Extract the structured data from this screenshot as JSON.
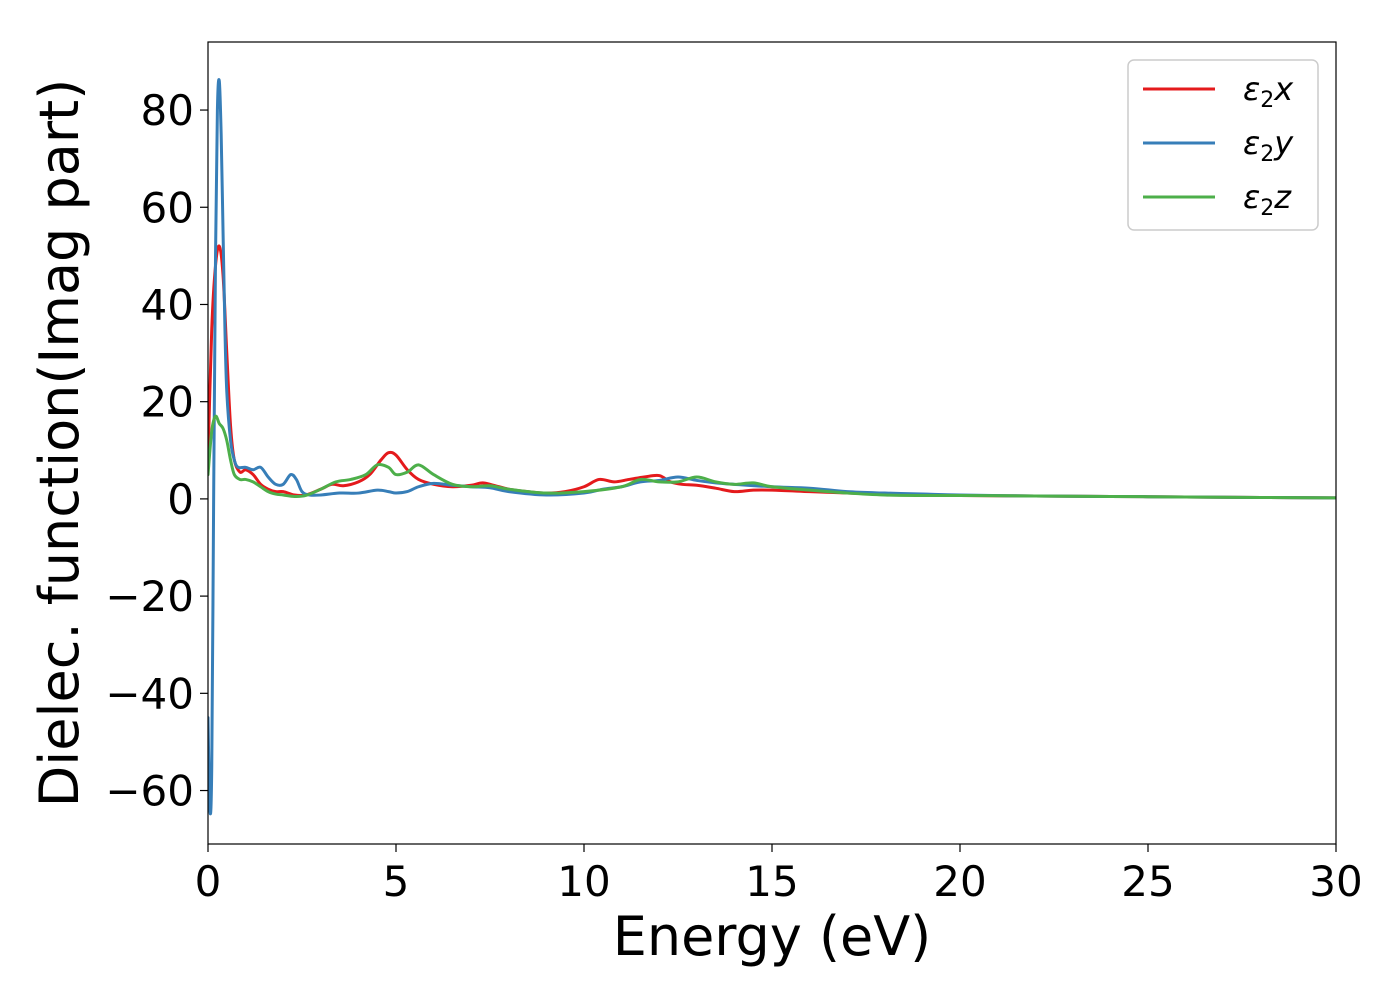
{
  "chart_data": {
    "type": "line",
    "title": "",
    "xlabel": "Energy (eV)",
    "ylabel": "Dielec. function(Imag part)",
    "xlim": [
      0,
      30
    ],
    "ylim": [
      -71,
      94
    ],
    "xticks": [
      0,
      5,
      10,
      15,
      20,
      25,
      30
    ],
    "xtick_labels": [
      "0",
      "5",
      "10",
      "15",
      "20",
      "25",
      "30"
    ],
    "yticks": [
      -60,
      -40,
      -20,
      0,
      20,
      40,
      60,
      80
    ],
    "ytick_labels": [
      "−60",
      "−40",
      "−20",
      "0",
      "20",
      "40",
      "60",
      "80"
    ],
    "grid": false,
    "legend_position": "top-right",
    "series": [
      {
        "name": "ε₂x",
        "legend_base": "ε",
        "legend_sub": "2",
        "legend_tail": "x",
        "color": "#e41a1c",
        "x": [
          0,
          0.1,
          0.2,
          0.3,
          0.4,
          0.5,
          0.6,
          0.7,
          0.85,
          1.0,
          1.2,
          1.4,
          1.6,
          1.8,
          2.0,
          2.3,
          2.6,
          3.0,
          3.3,
          3.6,
          4.0,
          4.3,
          4.6,
          4.8,
          5.0,
          5.3,
          5.6,
          6.0,
          6.5,
          7.0,
          7.3,
          7.6,
          8.0,
          8.5,
          9.0,
          9.5,
          10.0,
          10.4,
          10.8,
          11.2,
          11.6,
          12.0,
          12.3,
          12.6,
          13.0,
          13.5,
          14.0,
          14.5,
          15.0,
          16.0,
          17.0,
          18.0,
          19.0,
          20.0,
          22.0,
          24.0,
          26.0,
          28.0,
          30.0
        ],
        "y": [
          8,
          35,
          48,
          52,
          46,
          30,
          15,
          8,
          5.5,
          6,
          5,
          3,
          2,
          1.5,
          1.5,
          0.8,
          0.8,
          2,
          3,
          2.7,
          3.5,
          5,
          8,
          9.5,
          9,
          6,
          4,
          3,
          2.5,
          2.8,
          3.3,
          2.8,
          2,
          1.5,
          1.2,
          1.5,
          2.5,
          4,
          3.5,
          4,
          4.5,
          4.8,
          3.5,
          3,
          2.8,
          2.2,
          1.5,
          1.8,
          1.8,
          1.5,
          1.2,
          1,
          0.8,
          0.7,
          0.6,
          0.5,
          0.4,
          0.3,
          0.2
        ]
      },
      {
        "name": "ε₂y",
        "legend_base": "ε",
        "legend_sub": "2",
        "legend_tail": "y",
        "color": "#377eb8",
        "x": [
          0,
          0.05,
          0.1,
          0.15,
          0.2,
          0.25,
          0.3,
          0.35,
          0.4,
          0.45,
          0.5,
          0.6,
          0.7,
          0.8,
          1.0,
          1.2,
          1.4,
          1.6,
          1.8,
          2.0,
          2.2,
          2.35,
          2.5,
          2.7,
          3.0,
          3.5,
          4.0,
          4.5,
          4.8,
          5.0,
          5.3,
          5.6,
          6.0,
          6.5,
          7.0,
          7.5,
          8.0,
          9.0,
          10.0,
          10.5,
          11.0,
          11.5,
          12.0,
          12.5,
          13.0,
          13.5,
          14.0,
          15.0,
          16.0,
          17.0,
          18.0,
          19.0,
          20.0,
          22.0,
          24.0,
          26.0,
          28.0,
          30.0
        ],
        "y": [
          -45,
          -64,
          -55,
          0,
          50,
          80,
          86,
          75,
          55,
          35,
          22,
          12,
          8,
          6.5,
          6.5,
          6,
          6.5,
          4.5,
          3,
          3,
          5,
          4,
          1.5,
          0.8,
          0.8,
          1.2,
          1.2,
          1.8,
          1.5,
          1.2,
          1.5,
          2.5,
          3.2,
          2.8,
          2.5,
          2.3,
          1.5,
          0.8,
          1.2,
          2,
          2.5,
          3.5,
          3.8,
          4.5,
          3.8,
          3.3,
          3,
          2.5,
          2.2,
          1.5,
          1.2,
          1,
          0.8,
          0.6,
          0.5,
          0.4,
          0.3,
          0.2
        ]
      },
      {
        "name": "ε₂z",
        "legend_base": "ε",
        "legend_sub": "2",
        "legend_tail": "z",
        "color": "#4daf4a",
        "x": [
          0,
          0.1,
          0.2,
          0.3,
          0.4,
          0.5,
          0.6,
          0.7,
          0.85,
          1.0,
          1.2,
          1.4,
          1.6,
          1.8,
          2.0,
          2.3,
          2.6,
          3.0,
          3.4,
          3.8,
          4.2,
          4.5,
          4.8,
          5.0,
          5.3,
          5.6,
          6.0,
          6.5,
          7.0,
          7.5,
          8.0,
          9.0,
          10.0,
          11.0,
          11.5,
          12.0,
          12.5,
          13.0,
          13.5,
          14.0,
          14.5,
          15.0,
          16.0,
          17.0,
          18.0,
          19.0,
          20.0,
          22.0,
          24.0,
          26.0,
          28.0,
          30.0
        ],
        "y": [
          5,
          14,
          17,
          15.5,
          14.5,
          12,
          8,
          5,
          4,
          4,
          3.5,
          2.5,
          1.5,
          1,
          0.8,
          0.5,
          0.7,
          2,
          3.5,
          4,
          5,
          7,
          6.5,
          5,
          5.5,
          7,
          5,
          3,
          2.5,
          2.7,
          2,
          1.2,
          1.5,
          2.5,
          4,
          3.5,
          3.5,
          4.5,
          3.5,
          3,
          3.3,
          2.5,
          1.8,
          1.2,
          0.8,
          0.7,
          0.7,
          0.6,
          0.5,
          0.4,
          0.3,
          0.2
        ]
      }
    ]
  }
}
